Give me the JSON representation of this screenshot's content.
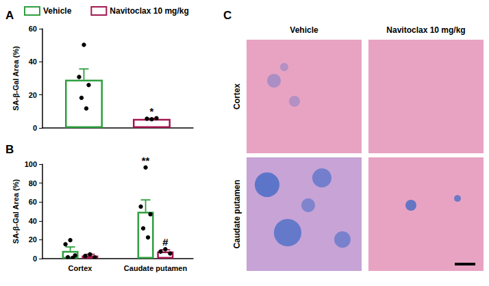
{
  "chart_data": [
    {
      "panel": "A",
      "type": "bar",
      "legend": "top",
      "grid": false,
      "ylabel": "SA-β-Gal Area (%)",
      "categories": [
        null
      ],
      "ylim": [
        0,
        60
      ],
      "yticks": [
        0,
        20,
        40,
        60
      ],
      "series": [
        {
          "name": "Vehicle",
          "color": "#2e9e3e",
          "values": [
            29.2
          ],
          "errors": [
            6.5
          ],
          "points": [
            [
              50.3,
              30.8,
              26.0,
              18.2,
              11.8
            ]
          ]
        },
        {
          "name": "Navitoclax 10 mg/kg",
          "color": "#a3174f",
          "values": [
            5.5
          ],
          "errors": [
            0.3
          ],
          "points": [
            [
              5.3,
              5.6,
              5.9
            ]
          ]
        }
      ],
      "annotations": [
        {
          "text": "*",
          "series": 1,
          "category": 0
        }
      ]
    },
    {
      "panel": "B",
      "type": "bar",
      "grid": false,
      "ylabel": "SA-β-Gal Area (%)",
      "categories": [
        "Cortex",
        "Caudate putamen"
      ],
      "ylim": [
        0,
        100
      ],
      "yticks": [
        0,
        20,
        40,
        60,
        80,
        100
      ],
      "series": [
        {
          "name": "Vehicle",
          "color": "#2e9e3e",
          "values": [
            8.2,
            49.6
          ],
          "errors": [
            4.2,
            12.6
          ],
          "points": [
            [
              19.5,
              15.2,
              3.5,
              1.5,
              0.8
            ],
            [
              96.5,
              55.0,
              47.0,
              32.0,
              22.5
            ]
          ]
        },
        {
          "name": "Navitoclax 10 mg/kg",
          "color": "#a3174f",
          "values": [
            3.3,
            7.6
          ],
          "errors": [
            1.3,
            1.8
          ],
          "points": [
            [
              4.5,
              2.8,
              1.2
            ],
            [
              10.0,
              7.5,
              5.5
            ]
          ]
        }
      ],
      "annotations": [
        {
          "text": "**",
          "series": 0,
          "category": 1
        },
        {
          "text": "#",
          "series": 1,
          "category": 1
        }
      ]
    }
  ],
  "images": {
    "panel": "C",
    "columns": [
      "Vehicle",
      "Navitoclax 10 mg/kg"
    ],
    "rows": [
      "Cortex",
      "Caudate putamen"
    ]
  }
}
